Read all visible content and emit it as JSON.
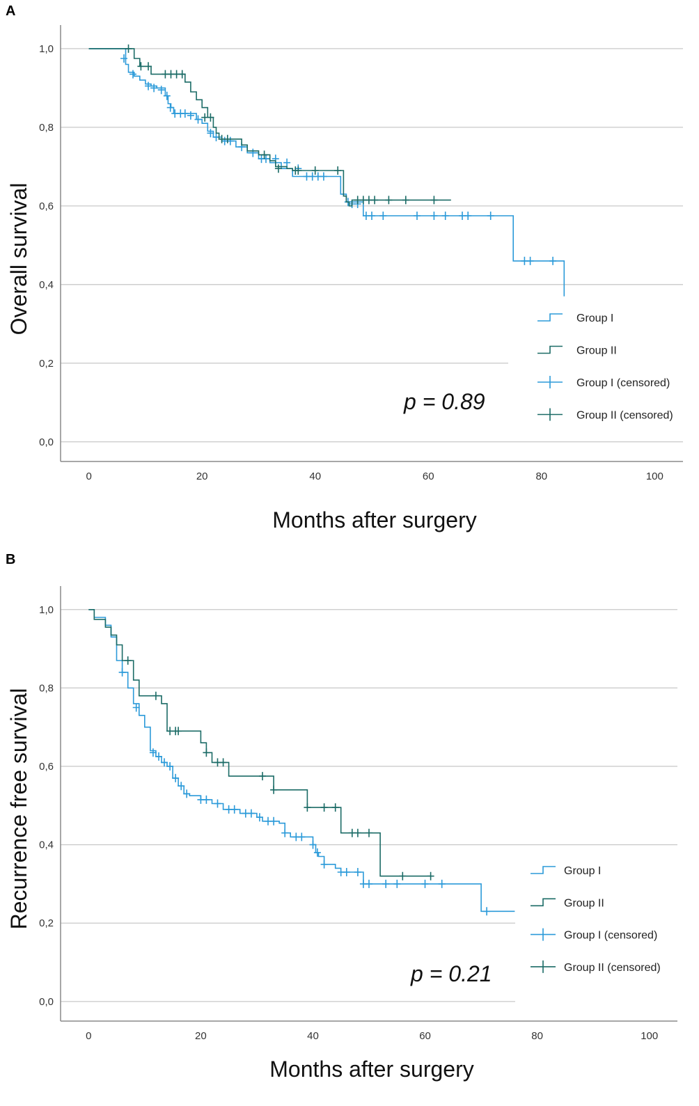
{
  "colors": {
    "group1": "#2b9ad9",
    "group2": "#1b6b66",
    "grid": "#c8c8c8",
    "axis": "#8a8a8a"
  },
  "chart_data": [
    {
      "panel_label": "A",
      "type": "line",
      "title": "",
      "xlabel": "Months after surgery",
      "ylabel": "Overall survival",
      "xlim": [
        -5,
        105
      ],
      "ylim": [
        -0.05,
        1.06
      ],
      "xticks": [
        0,
        20,
        40,
        60,
        80,
        100
      ],
      "xtick_labels": [
        "0",
        "20",
        "40",
        "60",
        "80",
        "100"
      ],
      "yticks": [
        0,
        0.2,
        0.4,
        0.6,
        0.8,
        1.0
      ],
      "ytick_labels": [
        "0,0",
        "0,2",
        "0,4",
        "0,6",
        "0,8",
        "1,0"
      ],
      "grid": true,
      "legend_position": "right",
      "legend": [
        "Group I",
        "Group II",
        "Group I (censored)",
        "Group II (censored)"
      ],
      "annotation": "p = 0.89",
      "series": [
        {
          "name": "Group I",
          "steps": [
            [
              0,
              1.0
            ],
            [
              6.5,
              0.96
            ],
            [
              7,
              0.94
            ],
            [
              8,
              0.93
            ],
            [
              9,
              0.92
            ],
            [
              10,
              0.91
            ],
            [
              11,
              0.905
            ],
            [
              12,
              0.9
            ],
            [
              13.5,
              0.88
            ],
            [
              14,
              0.86
            ],
            [
              14.5,
              0.85
            ],
            [
              15,
              0.835
            ],
            [
              19,
              0.82
            ],
            [
              20,
              0.81
            ],
            [
              21,
              0.79
            ],
            [
              22,
              0.775
            ],
            [
              23.5,
              0.765
            ],
            [
              26,
              0.75
            ],
            [
              28,
              0.735
            ],
            [
              30,
              0.72
            ],
            [
              32,
              0.71
            ],
            [
              34,
              0.695
            ],
            [
              36,
              0.675
            ],
            [
              44.5,
              0.63
            ],
            [
              45.5,
              0.61
            ],
            [
              48.5,
              0.575
            ],
            [
              75,
              0.46
            ],
            [
              84,
              0.37
            ]
          ],
          "end_x": 84,
          "censored": [
            [
              6.2,
              0.975
            ],
            [
              7.8,
              0.935
            ],
            [
              10.5,
              0.905
            ],
            [
              11.5,
              0.9
            ],
            [
              12.8,
              0.895
            ],
            [
              13.8,
              0.88
            ],
            [
              14.4,
              0.85
            ],
            [
              15.2,
              0.835
            ],
            [
              16.2,
              0.835
            ],
            [
              17,
              0.835
            ],
            [
              18,
              0.83
            ],
            [
              19.3,
              0.82
            ],
            [
              21.5,
              0.785
            ],
            [
              22.5,
              0.775
            ],
            [
              24,
              0.765
            ],
            [
              25,
              0.765
            ],
            [
              27,
              0.75
            ],
            [
              29,
              0.735
            ],
            [
              30.5,
              0.72
            ],
            [
              31.3,
              0.72
            ],
            [
              33,
              0.72
            ],
            [
              35,
              0.71
            ],
            [
              37,
              0.695
            ],
            [
              38.5,
              0.675
            ],
            [
              39.5,
              0.675
            ],
            [
              40.5,
              0.675
            ],
            [
              41.5,
              0.675
            ],
            [
              45.8,
              0.61
            ],
            [
              46.5,
              0.605
            ],
            [
              47.5,
              0.605
            ],
            [
              49,
              0.575
            ],
            [
              50,
              0.575
            ],
            [
              52,
              0.575
            ],
            [
              58,
              0.575
            ],
            [
              61,
              0.575
            ],
            [
              63,
              0.575
            ],
            [
              66,
              0.575
            ],
            [
              67,
              0.575
            ],
            [
              71,
              0.575
            ],
            [
              77,
              0.46
            ],
            [
              78,
              0.46
            ],
            [
              82,
              0.46
            ]
          ]
        },
        {
          "name": "Group II",
          "steps": [
            [
              0,
              1.0
            ],
            [
              7,
              1.0
            ],
            [
              8,
              0.975
            ],
            [
              9,
              0.955
            ],
            [
              11,
              0.935
            ],
            [
              17,
              0.915
            ],
            [
              18,
              0.89
            ],
            [
              19,
              0.87
            ],
            [
              20,
              0.85
            ],
            [
              21,
              0.825
            ],
            [
              22,
              0.8
            ],
            [
              22.5,
              0.785
            ],
            [
              23,
              0.77
            ],
            [
              27,
              0.755
            ],
            [
              28,
              0.74
            ],
            [
              30,
              0.73
            ],
            [
              32,
              0.715
            ],
            [
              33,
              0.7
            ],
            [
              35,
              0.695
            ],
            [
              36,
              0.69
            ],
            [
              45,
              0.625
            ],
            [
              45.5,
              0.61
            ],
            [
              46,
              0.6
            ],
            [
              46.5,
              0.615
            ],
            [
              64,
              0.615
            ]
          ],
          "end_x": 64,
          "censored": [
            [
              7,
              1.0
            ],
            [
              9.2,
              0.955
            ],
            [
              10.5,
              0.955
            ],
            [
              13.5,
              0.935
            ],
            [
              14.5,
              0.935
            ],
            [
              15.5,
              0.935
            ],
            [
              16.5,
              0.935
            ],
            [
              20.5,
              0.825
            ],
            [
              21.5,
              0.825
            ],
            [
              23.5,
              0.77
            ],
            [
              24.5,
              0.77
            ],
            [
              31,
              0.73
            ],
            [
              33.5,
              0.695
            ],
            [
              36.5,
              0.69
            ],
            [
              37,
              0.69
            ],
            [
              40,
              0.69
            ],
            [
              44,
              0.69
            ],
            [
              47.5,
              0.615
            ],
            [
              48.5,
              0.615
            ],
            [
              49.5,
              0.615
            ],
            [
              50.5,
              0.615
            ],
            [
              53,
              0.615
            ],
            [
              56,
              0.615
            ],
            [
              61,
              0.615
            ]
          ]
        }
      ]
    },
    {
      "panel_label": "B",
      "type": "line",
      "title": "",
      "xlabel": "Months after surgery",
      "ylabel": "Recurrence free survival",
      "xlim": [
        -5,
        105
      ],
      "ylim": [
        -0.05,
        1.06
      ],
      "xticks": [
        0,
        20,
        40,
        60,
        80,
        100
      ],
      "xtick_labels": [
        "0",
        "20",
        "40",
        "60",
        "80",
        "100"
      ],
      "yticks": [
        0,
        0.2,
        0.4,
        0.6,
        0.8,
        1.0
      ],
      "ytick_labels": [
        "0,0",
        "0,2",
        "0,4",
        "0,6",
        "0,8",
        "1,0"
      ],
      "grid": true,
      "legend_position": "right",
      "legend": [
        "Group I",
        "Group II",
        "Group I (censored)",
        "Group II (censored)"
      ],
      "annotation": "p = 0.21",
      "series": [
        {
          "name": "Group I",
          "steps": [
            [
              0,
              1.0
            ],
            [
              1,
              0.98
            ],
            [
              3,
              0.96
            ],
            [
              4,
              0.93
            ],
            [
              5,
              0.87
            ],
            [
              6,
              0.84
            ],
            [
              7,
              0.8
            ],
            [
              8,
              0.76
            ],
            [
              9,
              0.73
            ],
            [
              10,
              0.7
            ],
            [
              11,
              0.64
            ],
            [
              12,
              0.625
            ],
            [
              13,
              0.61
            ],
            [
              14,
              0.6
            ],
            [
              15,
              0.57
            ],
            [
              16,
              0.55
            ],
            [
              17,
              0.53
            ],
            [
              18,
              0.525
            ],
            [
              20,
              0.515
            ],
            [
              22,
              0.505
            ],
            [
              24,
              0.49
            ],
            [
              27,
              0.48
            ],
            [
              30,
              0.47
            ],
            [
              31,
              0.46
            ],
            [
              34,
              0.455
            ],
            [
              35,
              0.43
            ],
            [
              36,
              0.42
            ],
            [
              40,
              0.4
            ],
            [
              40.5,
              0.38
            ],
            [
              41,
              0.37
            ],
            [
              42,
              0.35
            ],
            [
              44,
              0.34
            ],
            [
              45,
              0.33
            ],
            [
              49,
              0.3
            ],
            [
              70,
              0.23
            ],
            [
              76,
              0.23
            ]
          ],
          "end_x": 76,
          "censored": [
            [
              6,
              0.84
            ],
            [
              8.5,
              0.75
            ],
            [
              11.5,
              0.635
            ],
            [
              12.5,
              0.625
            ],
            [
              13.5,
              0.61
            ],
            [
              14.5,
              0.6
            ],
            [
              15.5,
              0.57
            ],
            [
              16.5,
              0.55
            ],
            [
              17.5,
              0.53
            ],
            [
              20,
              0.515
            ],
            [
              21,
              0.515
            ],
            [
              23,
              0.505
            ],
            [
              25,
              0.49
            ],
            [
              26,
              0.49
            ],
            [
              28,
              0.48
            ],
            [
              29,
              0.48
            ],
            [
              30.5,
              0.47
            ],
            [
              32,
              0.46
            ],
            [
              33,
              0.46
            ],
            [
              35,
              0.43
            ],
            [
              37,
              0.42
            ],
            [
              38,
              0.42
            ],
            [
              40,
              0.4
            ],
            [
              40.8,
              0.38
            ],
            [
              42,
              0.35
            ],
            [
              45,
              0.33
            ],
            [
              46,
              0.33
            ],
            [
              48,
              0.33
            ],
            [
              49,
              0.3
            ],
            [
              50,
              0.3
            ],
            [
              53,
              0.3
            ],
            [
              55,
              0.3
            ],
            [
              60,
              0.3
            ],
            [
              63,
              0.3
            ],
            [
              71,
              0.23
            ]
          ]
        },
        {
          "name": "Group II",
          "steps": [
            [
              0,
              1.0
            ],
            [
              1,
              0.975
            ],
            [
              3,
              0.955
            ],
            [
              4,
              0.935
            ],
            [
              5,
              0.91
            ],
            [
              6,
              0.87
            ],
            [
              8,
              0.82
            ],
            [
              9,
              0.78
            ],
            [
              13,
              0.76
            ],
            [
              14,
              0.69
            ],
            [
              20,
              0.66
            ],
            [
              21,
              0.635
            ],
            [
              22,
              0.61
            ],
            [
              25,
              0.575
            ],
            [
              33,
              0.54
            ],
            [
              39,
              0.495
            ],
            [
              45,
              0.43
            ],
            [
              52,
              0.32
            ],
            [
              61,
              0.32
            ]
          ],
          "end_x": 61,
          "censored": [
            [
              7,
              0.87
            ],
            [
              12,
              0.78
            ],
            [
              14.5,
              0.69
            ],
            [
              15.5,
              0.69
            ],
            [
              16,
              0.69
            ],
            [
              21,
              0.635
            ],
            [
              23,
              0.61
            ],
            [
              24,
              0.61
            ],
            [
              31,
              0.575
            ],
            [
              33,
              0.54
            ],
            [
              39,
              0.495
            ],
            [
              42,
              0.495
            ],
            [
              44,
              0.495
            ],
            [
              47,
              0.43
            ],
            [
              48,
              0.43
            ],
            [
              50,
              0.43
            ],
            [
              56,
              0.32
            ],
            [
              61,
              0.32
            ]
          ]
        }
      ]
    }
  ]
}
